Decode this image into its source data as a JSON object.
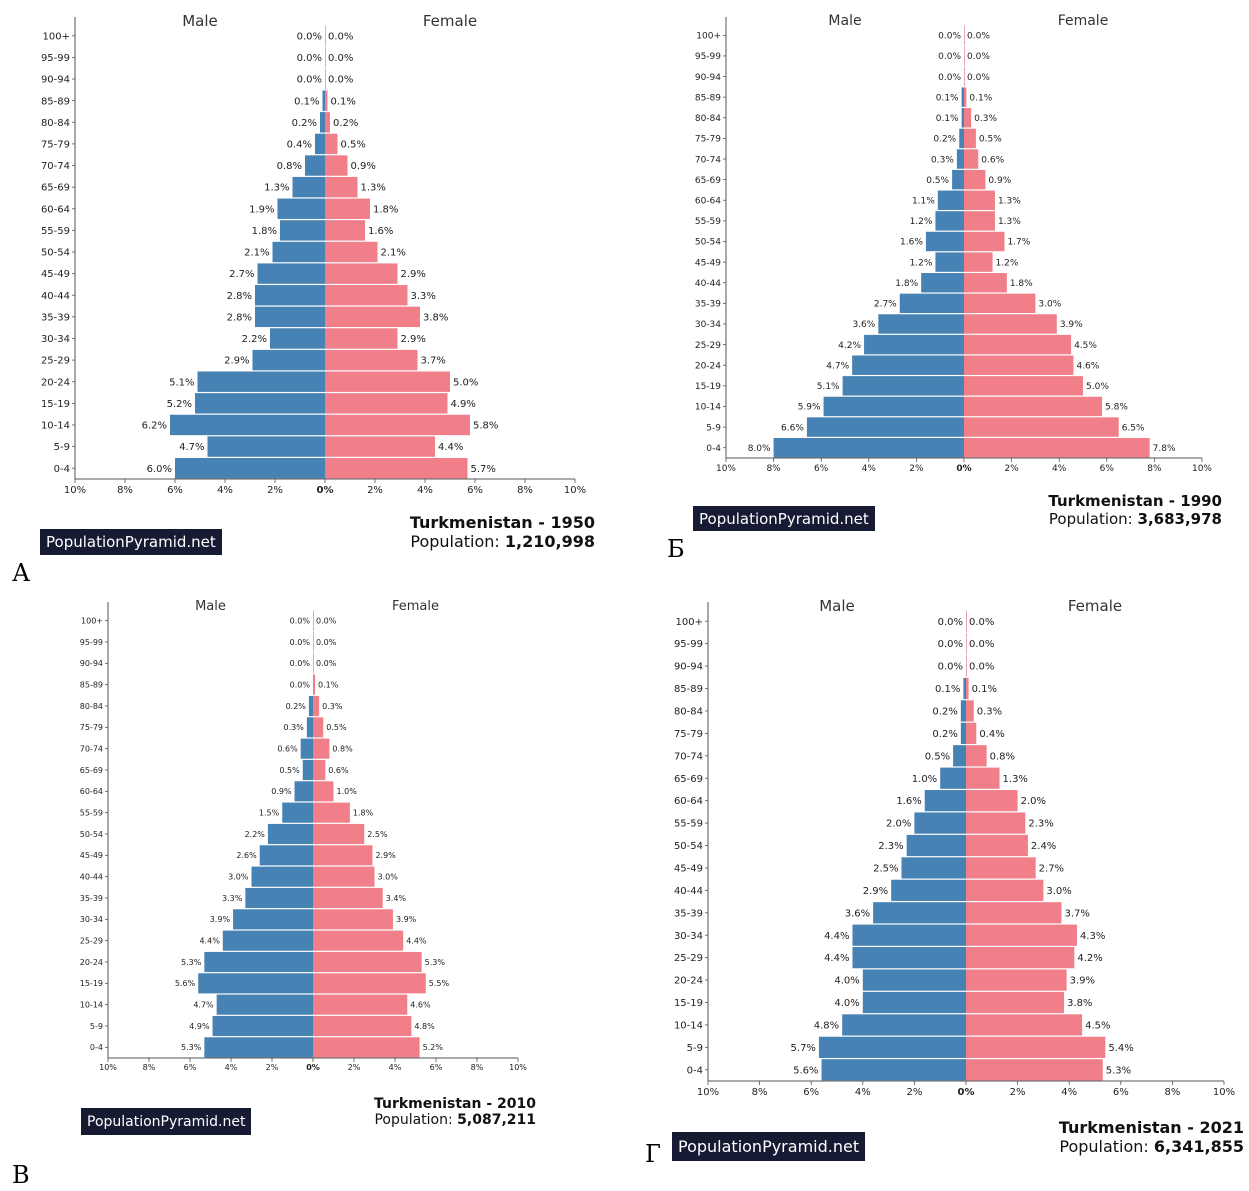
{
  "colors": {
    "male": "#4682b4",
    "female": "#f07f8a",
    "badge": "#161b33"
  },
  "site_badge": "PopulationPyramid.net",
  "population_label": "Population:",
  "panel_letters": [
    "А",
    "Б",
    "В",
    "Г"
  ],
  "chart_data": [
    {
      "type": "bar",
      "title": "Turkmenistan - 1950",
      "population": "1,210,998",
      "left_label": "Male",
      "right_label": "Female",
      "categories": [
        "0-4",
        "5-9",
        "10-14",
        "15-19",
        "20-24",
        "25-29",
        "30-34",
        "35-39",
        "40-44",
        "45-49",
        "50-54",
        "55-59",
        "60-64",
        "65-69",
        "70-74",
        "75-79",
        "80-84",
        "85-89",
        "90-94",
        "95-99",
        "100+"
      ],
      "series": [
        {
          "name": "Male",
          "values": [
            6.0,
            4.7,
            6.2,
            5.2,
            5.1,
            2.9,
            2.2,
            2.8,
            2.8,
            2.7,
            2.1,
            1.8,
            1.9,
            1.3,
            0.8,
            0.4,
            0.2,
            0.1,
            0.0,
            0.0,
            0.0
          ]
        },
        {
          "name": "Female",
          "values": [
            5.7,
            4.4,
            5.8,
            4.9,
            5.0,
            3.7,
            2.9,
            3.8,
            3.3,
            2.9,
            2.1,
            1.6,
            1.8,
            1.3,
            0.9,
            0.5,
            0.2,
            0.1,
            0.0,
            0.0,
            0.0
          ]
        }
      ],
      "xticks": [
        "10%",
        "8%",
        "6%",
        "4%",
        "2%",
        "0%",
        "2%",
        "4%",
        "6%",
        "8%",
        "10%"
      ],
      "xlim": [
        -10,
        10
      ]
    },
    {
      "type": "bar",
      "title": "Turkmenistan - 1990",
      "population": "3,683,978",
      "left_label": "Male",
      "right_label": "Female",
      "categories": [
        "0-4",
        "5-9",
        "10-14",
        "15-19",
        "20-24",
        "25-29",
        "30-34",
        "35-39",
        "40-44",
        "45-49",
        "50-54",
        "55-59",
        "60-64",
        "65-69",
        "70-74",
        "75-79",
        "80-84",
        "85-89",
        "90-94",
        "95-99",
        "100+"
      ],
      "series": [
        {
          "name": "Male",
          "values": [
            8.0,
            6.6,
            5.9,
            5.1,
            4.7,
            4.2,
            3.6,
            2.7,
            1.8,
            1.2,
            1.6,
            1.2,
            1.1,
            0.5,
            0.3,
            0.2,
            0.1,
            0.1,
            0.0,
            0.0,
            0.0
          ]
        },
        {
          "name": "Female",
          "values": [
            7.8,
            6.5,
            5.8,
            5.0,
            4.6,
            4.5,
            3.9,
            3.0,
            1.8,
            1.2,
            1.7,
            1.3,
            1.3,
            0.9,
            0.6,
            0.5,
            0.3,
            0.1,
            0.0,
            0.0,
            0.0
          ]
        }
      ],
      "xticks": [
        "10%",
        "8%",
        "6%",
        "4%",
        "2%",
        "0%",
        "2%",
        "4%",
        "6%",
        "8%",
        "10%"
      ],
      "xlim": [
        -10,
        10
      ]
    },
    {
      "type": "bar",
      "title": "Turkmenistan - 2010",
      "population": "5,087,211",
      "left_label": "Male",
      "right_label": "Female",
      "categories": [
        "0-4",
        "5-9",
        "10-14",
        "15-19",
        "20-24",
        "25-29",
        "30-34",
        "35-39",
        "40-44",
        "45-49",
        "50-54",
        "55-59",
        "60-64",
        "65-69",
        "70-74",
        "75-79",
        "80-84",
        "85-89",
        "90-94",
        "95-99",
        "100+"
      ],
      "series": [
        {
          "name": "Male",
          "values": [
            5.3,
            4.9,
            4.7,
            5.6,
            5.3,
            4.4,
            3.9,
            3.3,
            3.0,
            2.6,
            2.2,
            1.5,
            0.9,
            0.5,
            0.6,
            0.3,
            0.2,
            0.0,
            0.0,
            0.0,
            0.0
          ]
        },
        {
          "name": "Female",
          "values": [
            5.2,
            4.8,
            4.6,
            5.5,
            5.3,
            4.4,
            3.9,
            3.4,
            3.0,
            2.9,
            2.5,
            1.8,
            1.0,
            0.6,
            0.8,
            0.5,
            0.3,
            0.1,
            0.0,
            0.0,
            0.0
          ]
        }
      ],
      "xticks": [
        "10%",
        "8%",
        "6%",
        "4%",
        "2%",
        "0%",
        "2%",
        "4%",
        "6%",
        "8%",
        "10%"
      ],
      "xlim": [
        -10,
        10
      ]
    },
    {
      "type": "bar",
      "title": "Turkmenistan - 2021",
      "population": "6,341,855",
      "left_label": "Male",
      "right_label": "Female",
      "categories": [
        "0-4",
        "5-9",
        "10-14",
        "15-19",
        "20-24",
        "25-29",
        "30-34",
        "35-39",
        "40-44",
        "45-49",
        "50-54",
        "55-59",
        "60-64",
        "65-69",
        "70-74",
        "75-79",
        "80-84",
        "85-89",
        "90-94",
        "95-99",
        "100+"
      ],
      "series": [
        {
          "name": "Male",
          "values": [
            5.6,
            5.7,
            4.8,
            4.0,
            4.0,
            4.4,
            4.4,
            3.6,
            2.9,
            2.5,
            2.3,
            2.0,
            1.6,
            1.0,
            0.5,
            0.2,
            0.2,
            0.1,
            0.0,
            0.0,
            0.0
          ]
        },
        {
          "name": "Female",
          "values": [
            5.3,
            5.4,
            4.5,
            3.8,
            3.9,
            4.2,
            4.3,
            3.7,
            3.0,
            2.7,
            2.4,
            2.3,
            2.0,
            1.3,
            0.8,
            0.4,
            0.3,
            0.1,
            0.0,
            0.0,
            0.0
          ]
        }
      ],
      "xticks": [
        "10%",
        "8%",
        "6%",
        "4%",
        "2%",
        "0%",
        "2%",
        "4%",
        "6%",
        "8%",
        "10%"
      ],
      "xlim": [
        -10,
        10
      ]
    }
  ]
}
